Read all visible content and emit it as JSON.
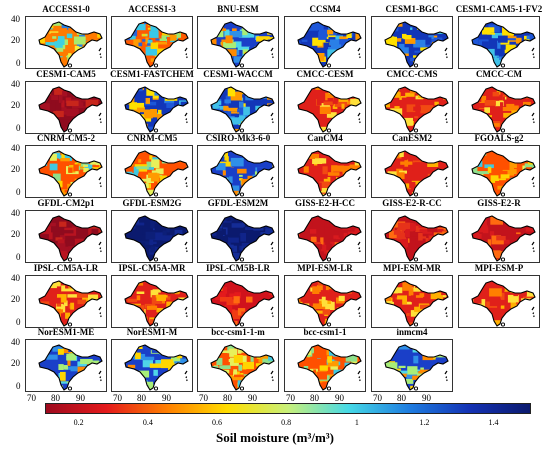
{
  "panels": [
    {
      "title": "ACCESS1-0",
      "scheme": "mixed_yellow"
    },
    {
      "title": "ACCESS1-3",
      "scheme": "mixed_orange"
    },
    {
      "title": "BNU-ESM",
      "scheme": "mixed_blue"
    },
    {
      "title": "CCSM4",
      "scheme": "blue"
    },
    {
      "title": "CESM1-BGC",
      "scheme": "blue"
    },
    {
      "title": "CESM1-CAM5-1-FV2",
      "scheme": "blue"
    },
    {
      "title": "CESM1-CAM5",
      "scheme": "darkred"
    },
    {
      "title": "CESM1-FASTCHEM",
      "scheme": "blue"
    },
    {
      "title": "CESM1-WACCM",
      "scheme": "blue"
    },
    {
      "title": "CMCC-CESM",
      "scheme": "red_orange"
    },
    {
      "title": "CMCC-CMS",
      "scheme": "red_orange"
    },
    {
      "title": "CMCC-CM",
      "scheme": "red_orange"
    },
    {
      "title": "CNRM-CM5-2",
      "scheme": "orange_yellow"
    },
    {
      "title": "CNRM-CM5",
      "scheme": "orange_yellow"
    },
    {
      "title": "CSIRO-Mk3-6-0",
      "scheme": "mixed_blue"
    },
    {
      "title": "CanCM4",
      "scheme": "red_orange"
    },
    {
      "title": "CanESM2",
      "scheme": "red_orange"
    },
    {
      "title": "FGOALS-g2",
      "scheme": "orange_yellow"
    },
    {
      "title": "GFDL-CM2p1",
      "scheme": "darkred"
    },
    {
      "title": "GFDL-ESM2G",
      "scheme": "darkblue"
    },
    {
      "title": "GFDL-ESM2M",
      "scheme": "darkblue"
    },
    {
      "title": "GISS-E2-H-CC",
      "scheme": "red_white"
    },
    {
      "title": "GISS-E2-R-CC",
      "scheme": "red_white"
    },
    {
      "title": "GISS-E2-R",
      "scheme": "red_white"
    },
    {
      "title": "IPSL-CM5A-LR",
      "scheme": "red_orange"
    },
    {
      "title": "IPSL-CM5A-MR",
      "scheme": "red_orange"
    },
    {
      "title": "IPSL-CM5B-LR",
      "scheme": "red"
    },
    {
      "title": "MPI-ESM-LR",
      "scheme": "red_orange"
    },
    {
      "title": "MPI-ESM-MR",
      "scheme": "red_orange"
    },
    {
      "title": "MPI-ESM-P",
      "scheme": "red_orange"
    },
    {
      "title": "NorESM1-ME",
      "scheme": "mixed_blue"
    },
    {
      "title": "NorESM1-M",
      "scheme": "mixed_blue"
    },
    {
      "title": "bcc-csm1-1-m",
      "scheme": "orange_yellow"
    },
    {
      "title": "bcc-csm1-1",
      "scheme": "orange_yellow"
    },
    {
      "title": "inmcm4",
      "scheme": "mixed_blue"
    }
  ],
  "axes": {
    "y_ticks": [
      "40",
      "20",
      "0"
    ],
    "x_ticks": [
      "70",
      "80",
      "90"
    ]
  },
  "colorbar": {
    "ticks": [
      "0.2",
      "0.4",
      "0.6",
      "0.8",
      "1",
      "1.2",
      "1.4"
    ],
    "range": [
      0.1,
      1.5
    ],
    "title": "Soil moisture (m³/m³)",
    "colors": [
      "#9e0a1e",
      "#e41a1c",
      "#ff7f00",
      "#ffdd00",
      "#c8f07a",
      "#46d9e6",
      "#1e7de0",
      "#1432b4",
      "#0b1a6e"
    ]
  }
}
